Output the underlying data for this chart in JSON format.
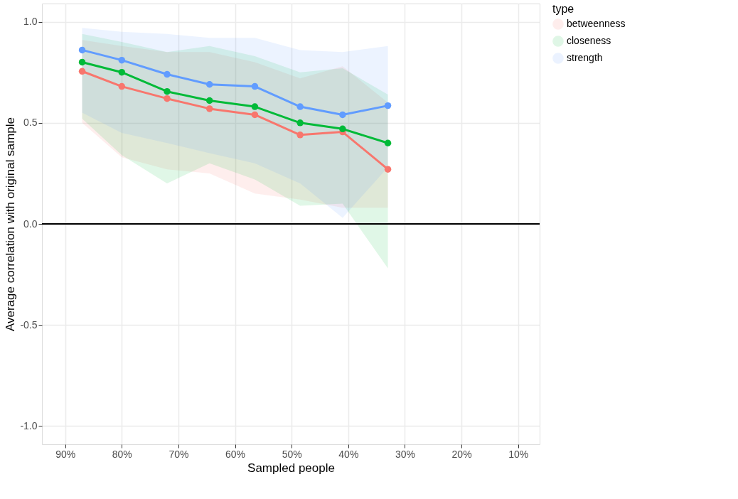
{
  "chart_data": {
    "type": "line",
    "xlabel": "Sampled people",
    "ylabel": "Average correlation with original sample",
    "legend_title": "type",
    "x": [
      87,
      80,
      72,
      64.5,
      56.5,
      48.5,
      41,
      33
    ],
    "series": [
      {
        "name": "betweenness",
        "color": "#f8766d",
        "values": [
          0.755,
          0.68,
          0.62,
          0.57,
          0.54,
          0.44,
          0.455,
          0.27
        ],
        "lower": [
          0.5,
          0.33,
          0.27,
          0.25,
          0.15,
          0.12,
          0.08,
          0.08
        ],
        "upper": [
          0.91,
          0.88,
          0.85,
          0.85,
          0.8,
          0.72,
          0.78,
          0.6
        ]
      },
      {
        "name": "closeness",
        "color": "#00ba38",
        "values": [
          0.8,
          0.75,
          0.655,
          0.61,
          0.58,
          0.5,
          0.47,
          0.4
        ],
        "lower": [
          0.52,
          0.34,
          0.2,
          0.3,
          0.22,
          0.09,
          0.1,
          -0.22
        ],
        "upper": [
          0.94,
          0.9,
          0.85,
          0.88,
          0.83,
          0.75,
          0.77,
          0.64
        ]
      },
      {
        "name": "strength",
        "color": "#619cff",
        "values": [
          0.86,
          0.81,
          0.74,
          0.69,
          0.68,
          0.58,
          0.54,
          0.585
        ],
        "lower": [
          0.55,
          0.45,
          0.4,
          0.35,
          0.3,
          0.2,
          0.03,
          0.28
        ],
        "upper": [
          0.97,
          0.95,
          0.94,
          0.92,
          0.92,
          0.86,
          0.85,
          0.88
        ]
      }
    ],
    "xlim": [
      94.1,
      6.2
    ],
    "xticks": [
      {
        "value": 90,
        "label": "90%"
      },
      {
        "value": 80,
        "label": "80%"
      },
      {
        "value": 70,
        "label": "70%"
      },
      {
        "value": 60,
        "label": "60%"
      },
      {
        "value": 50,
        "label": "50%"
      },
      {
        "value": 40,
        "label": "40%"
      },
      {
        "value": 30,
        "label": "30%"
      },
      {
        "value": 20,
        "label": "20%"
      },
      {
        "value": 10,
        "label": "10%"
      }
    ],
    "ylim": [
      -1.09,
      1.09
    ],
    "yticks": [
      {
        "value": -1,
        "label": "-1.0"
      },
      {
        "value": -0.5,
        "label": "-0.5"
      },
      {
        "value": 0,
        "label": "0.0"
      },
      {
        "value": 0.5,
        "label": "0.5"
      },
      {
        "value": 1,
        "label": "1.0"
      }
    ],
    "ref_lines": [
      {
        "axis": "y",
        "value": 0,
        "color": "#000000"
      }
    ],
    "grid": true,
    "legend": "right",
    "marker": "circle"
  }
}
